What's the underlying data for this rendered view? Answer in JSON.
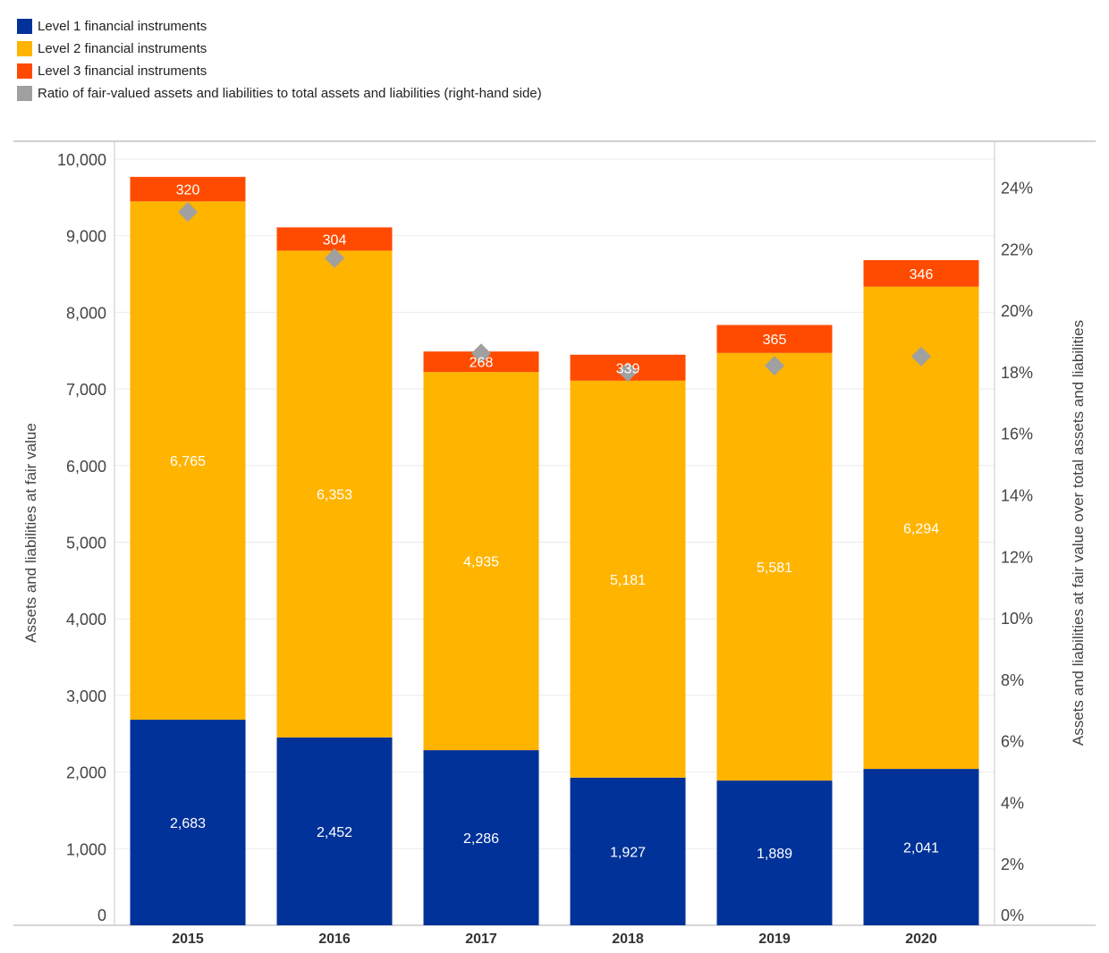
{
  "chart_data": {
    "type": "bar",
    "stacked": true,
    "categories": [
      "2015",
      "2016",
      "2017",
      "2018",
      "2019",
      "2020"
    ],
    "series": [
      {
        "name": "Level 1 financial instruments",
        "color": "#003299",
        "values": [
          2683,
          2452,
          2286,
          1927,
          1889,
          2041
        ],
        "labels": [
          "2,683",
          "2,452",
          "2,286",
          "1,927",
          "1,889",
          "2,041"
        ]
      },
      {
        "name": "Level 2 financial instruments",
        "color": "#FFB400",
        "values": [
          6765,
          6353,
          4935,
          5181,
          5581,
          6294
        ],
        "labels": [
          "6,765",
          "6,353",
          "4,935",
          "5,181",
          "5,581",
          "6,294"
        ]
      },
      {
        "name": "Level 3 financial instruments",
        "color": "#FF4B00",
        "values": [
          320,
          304,
          268,
          339,
          365,
          346
        ],
        "labels": [
          "320",
          "304",
          "268",
          "339",
          "365",
          "346"
        ]
      }
    ],
    "secondary_series": {
      "name": "Ratio of fair-valued assets and liabilities to total assets and liabilities (right-hand side)",
      "color": "#A0A0A0",
      "marker": "diamond",
      "axis": "right",
      "values": [
        23.2,
        21.7,
        18.6,
        18.0,
        18.2,
        18.5
      ]
    },
    "ylabel": "Assets and liabilities at fair value",
    "ylabel_right": "Assets and liabilities at fair value over total assets and liabilities",
    "xlabel": "",
    "ylim": [
      0,
      10233
    ],
    "ylim_right": [
      0,
      25.5
    ],
    "yticks": [
      0,
      1000,
      2000,
      3000,
      4000,
      5000,
      6000,
      7000,
      8000,
      9000,
      10000
    ],
    "yticks_labels": [
      "0",
      "1,000",
      "2,000",
      "3,000",
      "4,000",
      "5,000",
      "6,000",
      "7,000",
      "8,000",
      "9,000",
      "10,000"
    ],
    "yticks_right": [
      0,
      2,
      4,
      6,
      8,
      10,
      12,
      14,
      16,
      18,
      20,
      22,
      24
    ],
    "yticks_right_labels": [
      "0%",
      "2%",
      "4%",
      "6%",
      "8%",
      "10%",
      "12%",
      "14%",
      "16%",
      "18%",
      "20%",
      "22%",
      "24%"
    ],
    "grid": true,
    "legend_position": "top-left"
  },
  "legend": [
    {
      "label": "Level 1 financial instruments",
      "color": "#003299"
    },
    {
      "label": "Level 2 financial instruments",
      "color": "#FFB400"
    },
    {
      "label": "Level 3 financial instruments",
      "color": "#FF4B00"
    },
    {
      "label": "Ratio of fair-valued assets and liabilities to total assets and liabilities (right-hand side)",
      "color": "#A0A0A0"
    }
  ]
}
